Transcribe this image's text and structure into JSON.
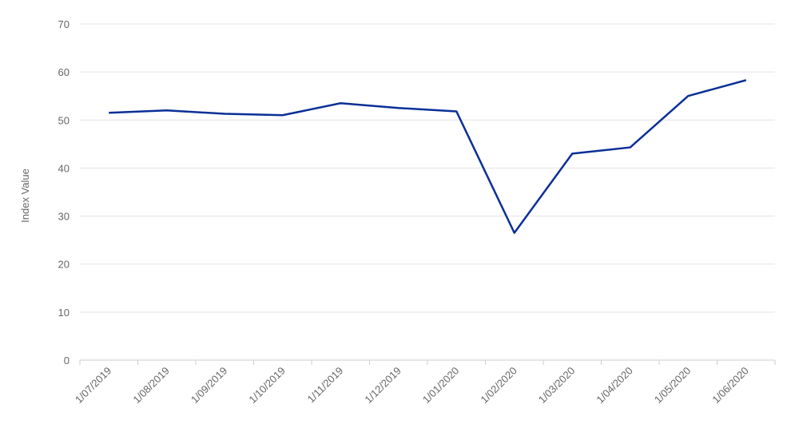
{
  "chart_data": {
    "type": "line",
    "y_label": "Index Value",
    "categories": [
      "1/07/2019",
      "1/08/2019",
      "1/09/2019",
      "1/10/2019",
      "1/11/2019",
      "1/12/2019",
      "1/01/2020",
      "1/02/2020",
      "1/03/2020",
      "1/04/2020",
      "1/05/2020",
      "1/06/2020"
    ],
    "values": [
      51.5,
      52,
      51.3,
      51,
      53.5,
      52.5,
      51.8,
      26.5,
      43,
      44.3,
      55,
      58.3
    ],
    "color": "#0a2f96",
    "ylim": [
      0,
      70
    ],
    "yticks": [
      0,
      10,
      20,
      30,
      40,
      50,
      60,
      70
    ],
    "grid": true
  }
}
